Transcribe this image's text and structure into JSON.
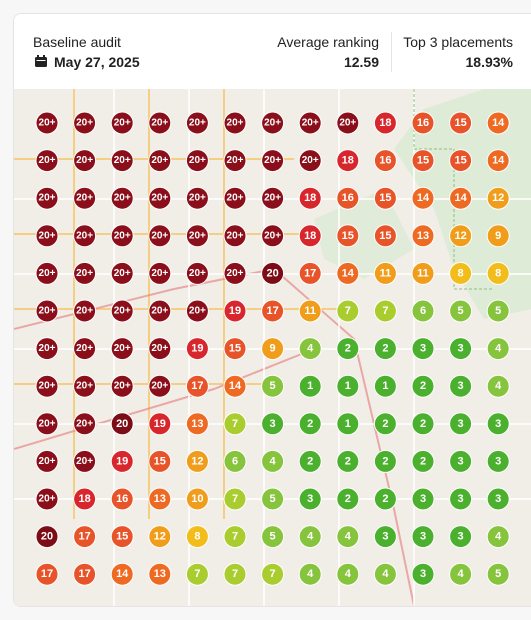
{
  "header": {
    "title": "Baseline audit",
    "date": "May 27, 2025"
  },
  "stats": [
    {
      "label": "Average ranking",
      "value": "12.59"
    },
    {
      "label": "Top 3 placements",
      "value": "18.93%"
    }
  ],
  "grid": {
    "rows": [
      [
        "20+",
        "20+",
        "20+",
        "20+",
        "20+",
        "20+",
        "20+",
        "20+",
        "20+",
        18,
        16,
        15,
        14
      ],
      [
        "20+",
        "20+",
        "20+",
        "20+",
        "20+",
        "20+",
        "20+",
        "20+",
        18,
        16,
        15,
        15,
        14
      ],
      [
        "20+",
        "20+",
        "20+",
        "20+",
        "20+",
        "20+",
        "20+",
        18,
        16,
        15,
        14,
        14,
        12
      ],
      [
        "20+",
        "20+",
        "20+",
        "20+",
        "20+",
        "20+",
        "20+",
        18,
        15,
        15,
        13,
        12,
        9
      ],
      [
        "20+",
        "20+",
        "20+",
        "20+",
        "20+",
        "20+",
        20,
        17,
        14,
        11,
        11,
        8,
        8
      ],
      [
        "20+",
        "20+",
        "20+",
        "20+",
        "20+",
        19,
        17,
        11,
        7,
        7,
        6,
        5,
        5
      ],
      [
        "20+",
        "20+",
        "20+",
        "20+",
        19,
        15,
        9,
        4,
        2,
        2,
        3,
        3,
        4
      ],
      [
        "20+",
        "20+",
        "20+",
        "20+",
        17,
        14,
        5,
        1,
        1,
        1,
        2,
        3,
        4
      ],
      [
        "20+",
        "20+",
        20,
        19,
        13,
        7,
        3,
        2,
        1,
        2,
        2,
        3,
        3
      ],
      [
        "20+",
        "20+",
        19,
        15,
        12,
        6,
        4,
        2,
        2,
        2,
        2,
        3,
        3
      ],
      [
        "20+",
        18,
        16,
        13,
        10,
        7,
        5,
        3,
        2,
        2,
        3,
        3,
        3
      ],
      [
        20,
        17,
        15,
        12,
        8,
        7,
        5,
        4,
        4,
        3,
        3,
        3,
        4
      ],
      [
        17,
        17,
        14,
        13,
        7,
        7,
        7,
        4,
        4,
        4,
        3,
        4,
        5
      ]
    ]
  }
}
